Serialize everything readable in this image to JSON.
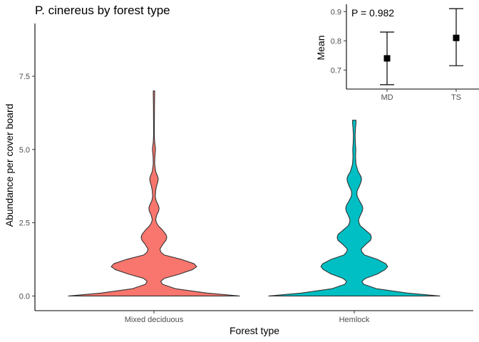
{
  "chart_data": [
    {
      "type": "violin",
      "title": "P. cinereus by forest type",
      "xlabel": "Forest type",
      "ylabel": "Abundance per cover board",
      "ylim": [
        -0.5,
        9.3
      ],
      "yticks": [
        0.0,
        2.5,
        5.0,
        7.5
      ],
      "ytick_labels": [
        "0.0",
        "2.5",
        "5.0",
        "7.5"
      ],
      "categories": [
        "Mixed deciduous",
        "Hemlock"
      ],
      "colors": {
        "Mixed deciduous": "#F8766D",
        "Hemlock": "#00BFC4"
      },
      "outline_color": "#333333",
      "grid": false,
      "legend": "none",
      "density_profiles": [
        {
          "category": "Mixed deciduous",
          "max_value": 7,
          "width_profile": [
            [
              0.0,
              1.0
            ],
            [
              0.1,
              0.62
            ],
            [
              0.25,
              0.25
            ],
            [
              0.4,
              0.1
            ],
            [
              0.5,
              0.08
            ],
            [
              0.6,
              0.12
            ],
            [
              0.75,
              0.3
            ],
            [
              0.9,
              0.45
            ],
            [
              1.0,
              0.5
            ],
            [
              1.1,
              0.47
            ],
            [
              1.25,
              0.32
            ],
            [
              1.4,
              0.12
            ],
            [
              1.5,
              0.08
            ],
            [
              1.6,
              0.07
            ],
            [
              1.75,
              0.1
            ],
            [
              1.9,
              0.14
            ],
            [
              2.0,
              0.15
            ],
            [
              2.1,
              0.14
            ],
            [
              2.25,
              0.1
            ],
            [
              2.4,
              0.05
            ],
            [
              2.5,
              0.03
            ],
            [
              2.6,
              0.02
            ],
            [
              2.75,
              0.03
            ],
            [
              2.9,
              0.055
            ],
            [
              3.0,
              0.06
            ],
            [
              3.1,
              0.05
            ],
            [
              3.25,
              0.025
            ],
            [
              3.4,
              0.015
            ],
            [
              3.6,
              0.02
            ],
            [
              3.75,
              0.03
            ],
            [
              3.9,
              0.045
            ],
            [
              4.0,
              0.05
            ],
            [
              4.1,
              0.04
            ],
            [
              4.25,
              0.02
            ],
            [
              4.5,
              0.008
            ],
            [
              4.75,
              0.01
            ],
            [
              4.9,
              0.015
            ],
            [
              5.0,
              0.018
            ],
            [
              5.1,
              0.015
            ],
            [
              5.25,
              0.008
            ],
            [
              5.5,
              0.004
            ],
            [
              6.0,
              0.005
            ],
            [
              6.5,
              0.006
            ],
            [
              6.9,
              0.008
            ],
            [
              7.0,
              0.008
            ]
          ]
        },
        {
          "category": "Hemlock",
          "max_value": 6,
          "width_profile": [
            [
              0.0,
              1.0
            ],
            [
              0.1,
              0.62
            ],
            [
              0.25,
              0.26
            ],
            [
              0.4,
              0.11
            ],
            [
              0.5,
              0.09
            ],
            [
              0.6,
              0.13
            ],
            [
              0.75,
              0.27
            ],
            [
              0.9,
              0.36
            ],
            [
              1.0,
              0.39
            ],
            [
              1.1,
              0.37
            ],
            [
              1.25,
              0.27
            ],
            [
              1.4,
              0.12
            ],
            [
              1.5,
              0.09
            ],
            [
              1.6,
              0.08
            ],
            [
              1.75,
              0.13
            ],
            [
              1.9,
              0.19
            ],
            [
              2.0,
              0.2
            ],
            [
              2.1,
              0.19
            ],
            [
              2.25,
              0.13
            ],
            [
              2.4,
              0.07
            ],
            [
              2.5,
              0.055
            ],
            [
              2.6,
              0.05
            ],
            [
              2.75,
              0.07
            ],
            [
              2.9,
              0.095
            ],
            [
              3.0,
              0.1
            ],
            [
              3.1,
              0.09
            ],
            [
              3.25,
              0.06
            ],
            [
              3.4,
              0.035
            ],
            [
              3.5,
              0.03
            ],
            [
              3.6,
              0.035
            ],
            [
              3.75,
              0.06
            ],
            [
              3.9,
              0.08
            ],
            [
              4.0,
              0.085
            ],
            [
              4.1,
              0.075
            ],
            [
              4.25,
              0.045
            ],
            [
              4.5,
              0.02
            ],
            [
              4.75,
              0.015
            ],
            [
              5.0,
              0.018
            ],
            [
              5.25,
              0.012
            ],
            [
              5.5,
              0.01
            ],
            [
              5.75,
              0.015
            ],
            [
              5.9,
              0.02
            ],
            [
              6.0,
              0.02
            ]
          ]
        }
      ]
    },
    {
      "type": "errorbar",
      "annotation": "P = 0.982",
      "ylabel": "Mean",
      "xlabel": "",
      "ylim": [
        0.635,
        0.925
      ],
      "yticks": [
        0.7,
        0.8,
        0.9
      ],
      "ytick_labels": [
        "0.7",
        "0.8",
        "0.9"
      ],
      "categories": [
        "MD",
        "TS"
      ],
      "means": [
        0.74,
        0.81
      ],
      "lower": [
        0.65,
        0.715
      ],
      "upper": [
        0.83,
        0.91
      ],
      "marker": "square",
      "legend": "none"
    }
  ]
}
